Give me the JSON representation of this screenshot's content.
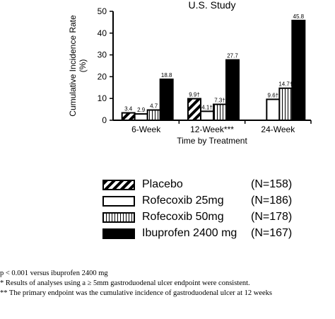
{
  "chart_data": {
    "type": "bar",
    "title": "U.S. Study",
    "xlabel": "Time by Treatment",
    "ylabel": "Cumulative Incidence Rate (%)",
    "ylim": [
      0,
      50
    ],
    "yticks": [
      0,
      10,
      20,
      30,
      40,
      50
    ],
    "categories": [
      "6-Week",
      "12-Week***",
      "24-Week"
    ],
    "series": [
      {
        "name": "Placebo",
        "n_label": "(N=158)",
        "values": [
          3.4,
          9.9,
          null
        ],
        "labels": [
          "3.4",
          "9.9†",
          ""
        ],
        "pattern": "diagonal"
      },
      {
        "name": "Rofecoxib 25mg",
        "n_label": "(N=186)",
        "values": [
          2.9,
          4.1,
          9.6
        ],
        "labels": [
          "2.9",
          "4.1†",
          "9.6†"
        ],
        "pattern": "white"
      },
      {
        "name": "Rofecoxib 50mg",
        "n_label": "(N=178)",
        "values": [
          4.7,
          7.3,
          14.7
        ],
        "labels": [
          "4.7",
          "7.3†",
          "14.7†"
        ],
        "pattern": "vertical"
      },
      {
        "name": "Ibuprofen 2400 mg",
        "n_label": "(N=167)",
        "values": [
          18.8,
          27.7,
          45.8
        ],
        "labels": [
          "18.8",
          "27.7",
          "45.8"
        ],
        "pattern": "solid"
      }
    ],
    "legend_position": "bottom"
  },
  "footnotes": [
    "p < 0.001 versus ibuprofen 2400 mg",
    "*  Results of analyses using a ≥ 5mm gastroduodenal ulcer endpoint were consistent.",
    "**     The primary endpoint was the cumulative incidence of gastroduodenal ulcer at 12 weeks"
  ]
}
